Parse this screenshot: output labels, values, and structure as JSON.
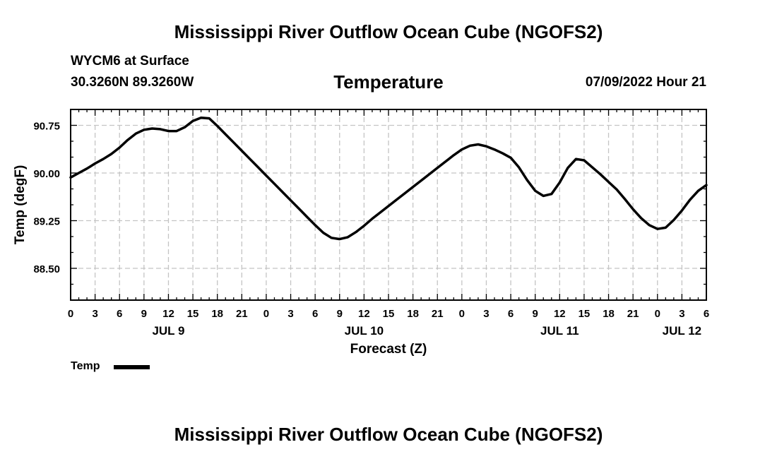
{
  "header": {
    "title": "Mississippi River Outflow Ocean Cube (NGOFS2)",
    "station": "WYCM6 at Surface",
    "coords": "30.3260N  89.3260W",
    "variable": "Temperature",
    "timestamp": "07/09/2022 Hour 21"
  },
  "footer": {
    "title": "Mississippi River Outflow Ocean Cube (NGOFS2)"
  },
  "legend": {
    "label": "Temp"
  },
  "chart_data": {
    "type": "line",
    "title": "Temperature",
    "xlabel": "Forecast (Z)",
    "ylabel": "Temp (degF)",
    "xlim": [
      0,
      78
    ],
    "ylim": [
      88.0,
      91.0
    ],
    "grid": true,
    "x_tick_hours": [
      0,
      3,
      6,
      9,
      12,
      15,
      18,
      21,
      24,
      27,
      30,
      33,
      36,
      39,
      42,
      45,
      48,
      51,
      54,
      57,
      60,
      63,
      66,
      69,
      72,
      75,
      78
    ],
    "x_tick_labels": [
      "0",
      "3",
      "6",
      "9",
      "12",
      "15",
      "18",
      "21",
      "0",
      "3",
      "6",
      "9",
      "12",
      "15",
      "18",
      "21",
      "0",
      "3",
      "6",
      "9",
      "12",
      "15",
      "18",
      "21",
      "0",
      "3",
      "6"
    ],
    "y_ticks": [
      88.5,
      89.25,
      90.0,
      90.75
    ],
    "y_tick_labels": [
      "88.50",
      "89.25",
      "90.00",
      "90.75"
    ],
    "date_labels": [
      {
        "hour": 12,
        "label": "JUL 9"
      },
      {
        "hour": 36,
        "label": "JUL 10"
      },
      {
        "hour": 60,
        "label": "JUL 11"
      },
      {
        "hour": 75,
        "label": "JUL 12"
      }
    ],
    "series": [
      {
        "name": "Temp",
        "color": "#000000",
        "x": [
          0,
          1,
          2,
          3,
          4,
          5,
          6,
          7,
          8,
          9,
          10,
          11,
          12,
          13,
          14,
          15,
          16,
          17,
          18,
          19,
          20,
          21,
          22,
          23,
          24,
          25,
          26,
          27,
          28,
          29,
          30,
          31,
          32,
          33,
          34,
          35,
          36,
          37,
          38,
          39,
          40,
          41,
          42,
          43,
          44,
          45,
          46,
          47,
          48,
          49,
          50,
          51,
          52,
          53,
          54,
          55,
          56,
          57,
          58,
          59,
          60,
          61,
          62,
          63,
          64,
          65,
          66,
          67,
          68,
          69,
          70,
          71,
          72,
          73,
          74,
          75,
          76,
          77,
          78
        ],
        "y": [
          89.93,
          90.0,
          90.07,
          90.15,
          90.22,
          90.3,
          90.4,
          90.52,
          90.62,
          90.68,
          90.7,
          90.69,
          90.66,
          90.66,
          90.72,
          90.82,
          90.87,
          90.86,
          90.74,
          90.61,
          90.48,
          90.35,
          90.22,
          90.09,
          89.96,
          89.83,
          89.7,
          89.57,
          89.44,
          89.31,
          89.18,
          89.06,
          88.98,
          88.96,
          88.99,
          89.07,
          89.17,
          89.28,
          89.38,
          89.48,
          89.58,
          89.68,
          89.78,
          89.88,
          89.98,
          90.08,
          90.18,
          90.28,
          90.37,
          90.43,
          90.45,
          90.42,
          90.37,
          90.31,
          90.24,
          90.09,
          89.89,
          89.72,
          89.64,
          89.67,
          89.85,
          90.08,
          90.22,
          90.2,
          90.09,
          89.98,
          89.86,
          89.74,
          89.59,
          89.43,
          89.29,
          89.18,
          89.12,
          89.14,
          89.26,
          89.41,
          89.58,
          89.72,
          89.81
        ]
      }
    ]
  }
}
